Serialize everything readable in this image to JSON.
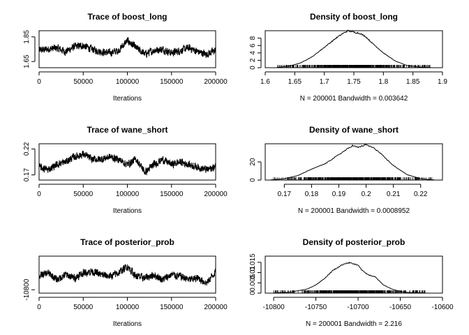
{
  "chart_data": [
    {
      "type": "line",
      "title": "Trace of boost_long",
      "xlabel": "Iterations",
      "xlim": [
        0,
        200000
      ],
      "ylim": [
        1.6,
        1.9
      ],
      "x_ticks": [
        0,
        50000,
        100000,
        150000,
        200000
      ],
      "y_ticks": [
        1.65,
        1.85
      ],
      "series": [
        {
          "x": [
            0,
            10000,
            20000,
            30000,
            40000,
            50000,
            60000,
            70000,
            80000,
            90000,
            100000,
            110000,
            120000,
            130000,
            140000,
            150000,
            160000,
            170000,
            180000,
            190000,
            200000
          ],
          "y": [
            1.74,
            1.75,
            1.76,
            1.73,
            1.77,
            1.78,
            1.75,
            1.73,
            1.72,
            1.74,
            1.82,
            1.76,
            1.71,
            1.74,
            1.75,
            1.72,
            1.74,
            1.76,
            1.73,
            1.71,
            1.74
          ]
        }
      ]
    },
    {
      "type": "area",
      "title": "Density of boost_long",
      "subtitle": "N = 200001   Bandwidth = 0.003642",
      "xlim": [
        1.6,
        1.9
      ],
      "ylim": [
        0,
        10
      ],
      "x_ticks": [
        1.6,
        1.65,
        1.7,
        1.75,
        1.8,
        1.85,
        1.9
      ],
      "y_ticks": [
        0,
        2,
        4,
        6,
        8
      ],
      "series": [
        {
          "x": [
            1.62,
            1.64,
            1.66,
            1.68,
            1.7,
            1.72,
            1.73,
            1.74,
            1.75,
            1.76,
            1.77,
            1.78,
            1.8,
            1.82,
            1.84,
            1.86,
            1.88
          ],
          "y": [
            0.1,
            0.4,
            1.3,
            3.0,
            5.5,
            8.0,
            9.1,
            10.0,
            9.6,
            9.3,
            8.4,
            6.8,
            4.0,
            1.8,
            0.6,
            0.2,
            0.05
          ]
        }
      ]
    },
    {
      "type": "line",
      "title": "Trace of wane_short",
      "xlabel": "Iterations",
      "xlim": [
        0,
        200000
      ],
      "ylim": [
        0.16,
        0.23
      ],
      "x_ticks": [
        0,
        50000,
        100000,
        150000,
        200000
      ],
      "y_ticks": [
        0.17,
        0.22
      ],
      "series": [
        {
          "x": [
            0,
            10000,
            20000,
            30000,
            40000,
            50000,
            60000,
            70000,
            80000,
            90000,
            100000,
            110000,
            120000,
            130000,
            140000,
            150000,
            160000,
            170000,
            180000,
            190000,
            200000
          ],
          "y": [
            0.185,
            0.18,
            0.19,
            0.195,
            0.205,
            0.21,
            0.2,
            0.2,
            0.205,
            0.2,
            0.19,
            0.2,
            0.175,
            0.19,
            0.2,
            0.19,
            0.195,
            0.19,
            0.185,
            0.18,
            0.185
          ]
        }
      ]
    },
    {
      "type": "area",
      "title": "Density of wane_short",
      "subtitle": "N = 200001   Bandwidth = 0.0008952",
      "xlim": [
        0.163,
        0.228
      ],
      "ylim": [
        0,
        40
      ],
      "x_ticks": [
        0.17,
        0.18,
        0.19,
        0.2,
        0.21,
        0.22
      ],
      "y_ticks": [
        0,
        20
      ],
      "series": [
        {
          "x": [
            0.165,
            0.17,
            0.175,
            0.18,
            0.185,
            0.19,
            0.193,
            0.195,
            0.197,
            0.2,
            0.203,
            0.205,
            0.21,
            0.215,
            0.22,
            0.225
          ],
          "y": [
            0.2,
            1.5,
            5,
            12,
            18,
            28,
            34,
            38,
            36,
            39,
            35,
            30,
            16,
            6,
            1.5,
            0.2
          ]
        }
      ]
    },
    {
      "type": "line",
      "title": "Trace of posterior_prob",
      "xlabel": "Iterations",
      "xlim": [
        0,
        200000
      ],
      "ylim": [
        -10820,
        -10600
      ],
      "x_ticks": [
        0,
        50000,
        100000,
        150000,
        200000
      ],
      "y_ticks": [
        -10800
      ],
      "series": [
        {
          "x": [
            0,
            10000,
            20000,
            30000,
            40000,
            50000,
            60000,
            70000,
            80000,
            90000,
            100000,
            110000,
            120000,
            130000,
            140000,
            150000,
            160000,
            170000,
            180000,
            190000,
            200000
          ],
          "y": [
            -10720,
            -10700,
            -10740,
            -10710,
            -10730,
            -10700,
            -10690,
            -10710,
            -10720,
            -10700,
            -10660,
            -10720,
            -10730,
            -10710,
            -10740,
            -10710,
            -10720,
            -10740,
            -10730,
            -10760,
            -10690
          ]
        }
      ]
    },
    {
      "type": "area",
      "title": "Density of posterior_prob",
      "subtitle": "N = 200001   Bandwidth = 2.216",
      "xlim": [
        -10810,
        -10600
      ],
      "ylim": [
        0,
        0.018
      ],
      "x_ticks": [
        -10800,
        -10750,
        -10700,
        -10650,
        -10600
      ],
      "y_ticks": [
        0,
        0.005,
        0.01,
        0.015
      ],
      "series": [
        {
          "x": [
            -10800,
            -10780,
            -10760,
            -10750,
            -10740,
            -10730,
            -10720,
            -10715,
            -10710,
            -10705,
            -10700,
            -10695,
            -10690,
            -10685,
            -10680,
            -10670,
            -10660,
            -10650,
            -10640,
            -10620
          ],
          "y": [
            0.0001,
            0.0005,
            0.002,
            0.004,
            0.007,
            0.011,
            0.0135,
            0.0145,
            0.0148,
            0.0142,
            0.0135,
            0.011,
            0.0095,
            0.0085,
            0.008,
            0.004,
            0.002,
            0.0008,
            0.0003,
            0.0001
          ]
        }
      ]
    }
  ]
}
